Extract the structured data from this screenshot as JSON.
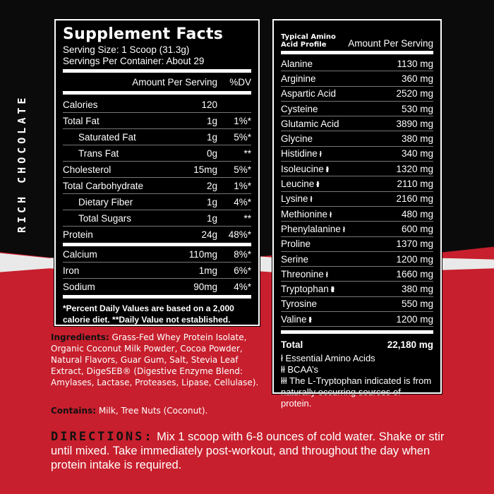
{
  "flavor": "RICH CHOCOLATE",
  "supplement_facts": {
    "title": "Supplement Facts",
    "serving_size": "Serving Size: 1 Scoop (31.3g)",
    "servings_per_container": "Servings Per Container: About 29",
    "col_amount": "Amount Per Serving",
    "col_dv": "%DV",
    "rows": [
      {
        "name": "Calories",
        "amount": "120",
        "dv": ""
      },
      {
        "name": "Total Fat",
        "amount": "1g",
        "dv": "1%*"
      },
      {
        "name": "Saturated Fat",
        "amount": "1g",
        "dv": "5%*"
      },
      {
        "name": "Trans Fat",
        "amount": "0g",
        "dv": "**"
      },
      {
        "name": "Cholesterol",
        "amount": "15mg",
        "dv": "5%*"
      },
      {
        "name": "Total Carbohydrate",
        "amount": "2g",
        "dv": "1%*"
      },
      {
        "name": "Dietary Fiber",
        "amount": "1g",
        "dv": "4%*"
      },
      {
        "name": "Total Sugars",
        "amount": "1g",
        "dv": "**"
      },
      {
        "name": "Protein",
        "amount": "24g",
        "dv": "48%*"
      }
    ],
    "minerals": [
      {
        "name": "Calcium",
        "amount": "110mg",
        "dv": "8%*"
      },
      {
        "name": "Iron",
        "amount": "1mg",
        "dv": "6%*"
      },
      {
        "name": "Sodium",
        "amount": "90mg",
        "dv": "4%*"
      }
    ],
    "footnote": "*Percent Daily Values are based on a 2,000 calorie diet. **Daily Value not established."
  },
  "amino": {
    "title": "Typical Amino Acid Profile",
    "col_amount": "Amount Per Serving",
    "rows": [
      {
        "name": "Alanine",
        "mark": "",
        "amount": "1130 mg"
      },
      {
        "name": "Arginine",
        "mark": "",
        "amount": "360 mg"
      },
      {
        "name": "Aspartic Acid",
        "mark": "",
        "amount": "2520 mg"
      },
      {
        "name": "Cysteine",
        "mark": "",
        "amount": "530 mg"
      },
      {
        "name": "Glutamic Acid",
        "mark": "",
        "amount": "3890 mg"
      },
      {
        "name": "Glycine",
        "mark": "",
        "amount": "380 mg"
      },
      {
        "name": "Histidine",
        "mark": "ł",
        "amount": "340 mg"
      },
      {
        "name": "Isoleucine",
        "mark": "łł",
        "amount": "1320 mg"
      },
      {
        "name": "Leucine",
        "mark": "łł",
        "amount": "2110 mg"
      },
      {
        "name": "Lysine",
        "mark": "ł",
        "amount": "2160 mg"
      },
      {
        "name": "Methionine",
        "mark": "ł",
        "amount": "480 mg"
      },
      {
        "name": "Phenylalanine",
        "mark": "ł",
        "amount": "600 mg"
      },
      {
        "name": "Proline",
        "mark": "",
        "amount": "1370 mg"
      },
      {
        "name": "Serine",
        "mark": "",
        "amount": "1200 mg"
      },
      {
        "name": "Threonine",
        "mark": "ł",
        "amount": "1660 mg"
      },
      {
        "name": "Tryptophan",
        "mark": "łłł",
        "amount": "380 mg"
      },
      {
        "name": "Tyrosine",
        "mark": "",
        "amount": "550 mg"
      },
      {
        "name": "Valine",
        "mark": "łł",
        "amount": "1200 mg"
      }
    ],
    "total_label": "Total",
    "total_value": "22,180 mg",
    "footnotes": [
      "ł  Essential Amino Acids",
      "łł  BCAA’s",
      "łłł The L-Tryptophan indicated is from naturally occurring sources of protein."
    ]
  },
  "ingredients": {
    "label": "Ingredients:",
    "text": " Grass-Fed Whey Protein Isolate, Organic Coconut Milk Powder, Cocoa Powder, Natural Flavors, Guar Gum, Salt, Stevia Leaf Extract, DigeSEB® (Digestive Enzyme Blend: Amylases, Lactase, Proteases, Lipase, Cellulase)."
  },
  "contains": {
    "label": "Contains:",
    "text": " Milk, Tree Nuts (Coconut)."
  },
  "directions": {
    "label": "DIRECTIONS:",
    "text": "  Mix 1 scoop with 6-8 ounces of cold water. Shake or stir until mixed. Take immediately post-workout, and throughout the day when protein intake is required."
  }
}
